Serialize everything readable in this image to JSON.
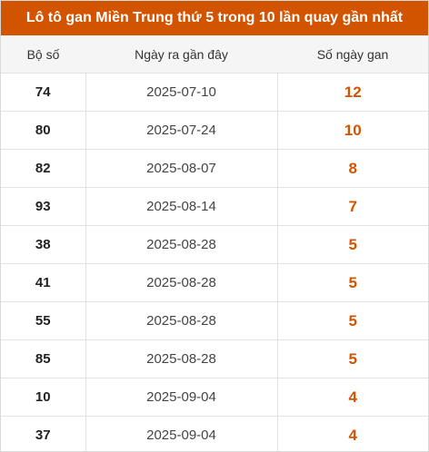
{
  "title": "Lô tô gan Miền Trung thứ 5 trong 10 lần quay gần nhất",
  "headers": {
    "col1": "Bộ số",
    "col2": "Ngày ra gần đây",
    "col3": "Số ngày gan"
  },
  "colors": {
    "accent": "#d35400",
    "header_bg": "#f5f5f5"
  },
  "rows": [
    {
      "number": "74",
      "date": "2025-07-10",
      "days": "12"
    },
    {
      "number": "80",
      "date": "2025-07-24",
      "days": "10"
    },
    {
      "number": "82",
      "date": "2025-08-07",
      "days": "8"
    },
    {
      "number": "93",
      "date": "2025-08-14",
      "days": "7"
    },
    {
      "number": "38",
      "date": "2025-08-28",
      "days": "5"
    },
    {
      "number": "41",
      "date": "2025-08-28",
      "days": "5"
    },
    {
      "number": "55",
      "date": "2025-08-28",
      "days": "5"
    },
    {
      "number": "85",
      "date": "2025-08-28",
      "days": "5"
    },
    {
      "number": "10",
      "date": "2025-09-04",
      "days": "4"
    },
    {
      "number": "37",
      "date": "2025-09-04",
      "days": "4"
    }
  ]
}
